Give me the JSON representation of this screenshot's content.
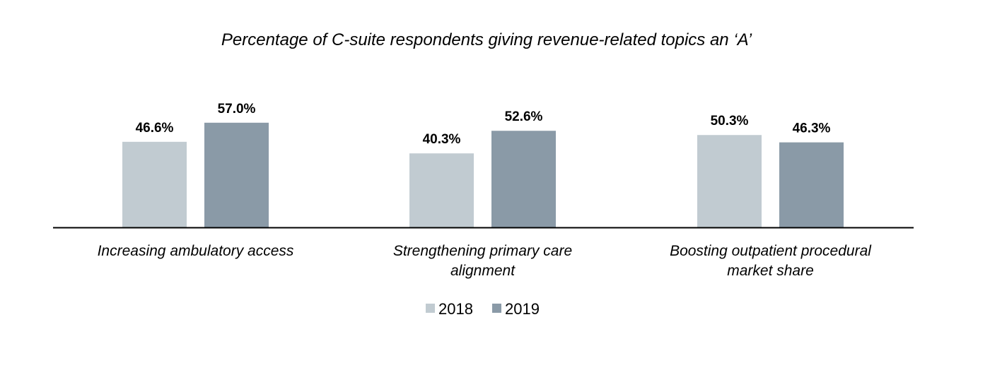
{
  "chart_data": {
    "type": "bar",
    "title": "Percentage of C-suite respondents giving revenue-related topics an ‘A’",
    "categories": [
      [
        "Increasing ambulatory access"
      ],
      [
        "Strengthening primary care",
        "alignment"
      ],
      [
        "Boosting outpatient procedural",
        "market share"
      ]
    ],
    "series": [
      {
        "name": "2018",
        "values": [
          46.6,
          40.3,
          50.3
        ],
        "labels": [
          "46.6%",
          "40.3%",
          "50.3%"
        ],
        "color": "#c1cbd1"
      },
      {
        "name": "2019",
        "values": [
          57.0,
          52.6,
          46.3
        ],
        "labels": [
          "57.0%",
          "52.6%",
          "46.3%"
        ],
        "color": "#8a9aa7"
      }
    ],
    "xlabel": "",
    "ylabel": "",
    "ylim": [
      0,
      100
    ],
    "grid": false,
    "legend": "bottom-center"
  }
}
